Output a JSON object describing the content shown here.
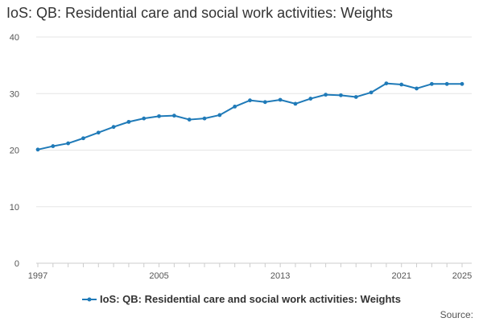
{
  "chart_data": {
    "type": "line",
    "title": "IoS: QB: Residential care and social work activities: Weights",
    "xlabel": "",
    "ylabel": "",
    "xlim": [
      1997,
      2025
    ],
    "ylim": [
      0,
      40
    ],
    "y_ticks": [
      0,
      10,
      20,
      30,
      40
    ],
    "x_tick_labels": [
      "1997",
      "2005",
      "2013",
      "2021",
      "2025"
    ],
    "grid": true,
    "legend_position": "bottom",
    "series": [
      {
        "name": "IoS: QB: Residential care and social work activities: Weights",
        "color": "#1f7ab8",
        "x": [
          1997,
          1998,
          1999,
          2000,
          2001,
          2002,
          2003,
          2004,
          2005,
          2006,
          2007,
          2008,
          2009,
          2010,
          2011,
          2012,
          2013,
          2014,
          2015,
          2016,
          2017,
          2018,
          2019,
          2020,
          2021,
          2022,
          2023,
          2024,
          2025
        ],
        "values": [
          20.1,
          20.7,
          21.2,
          22.1,
          23.1,
          24.1,
          25.0,
          25.6,
          26.0,
          26.1,
          25.4,
          25.6,
          26.2,
          27.7,
          28.8,
          28.5,
          28.9,
          28.2,
          29.1,
          29.8,
          29.7,
          29.4,
          30.2,
          31.8,
          31.6,
          30.9,
          31.7,
          31.7,
          31.7
        ]
      }
    ]
  },
  "source_label": "Source:"
}
